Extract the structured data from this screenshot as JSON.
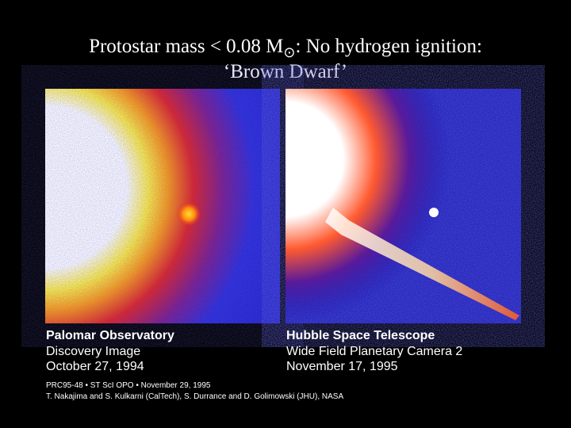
{
  "title": {
    "line1_start": "Protostar mass < 0.08 M",
    "line1_symbol": "⊙",
    "line1_end": ":  No hydrogen ignition:",
    "line2": "‘Brown Dwarf’"
  },
  "left_panel": {
    "caption": [
      "Palomar Observatory",
      "Discovery Image",
      "October 27, 1994"
    ]
  },
  "right_panel": {
    "caption": [
      "Hubble Space Telescope",
      "Wide Field Planetary Camera 2",
      "November 17, 1995"
    ]
  },
  "credits": [
    "PRC95-48 • ST ScI OPO • November 29, 1995",
    "T. Nakajima and S. Kulkarni (CalTech), S. Durrance and D. Golimowski (JHU), NASA"
  ]
}
